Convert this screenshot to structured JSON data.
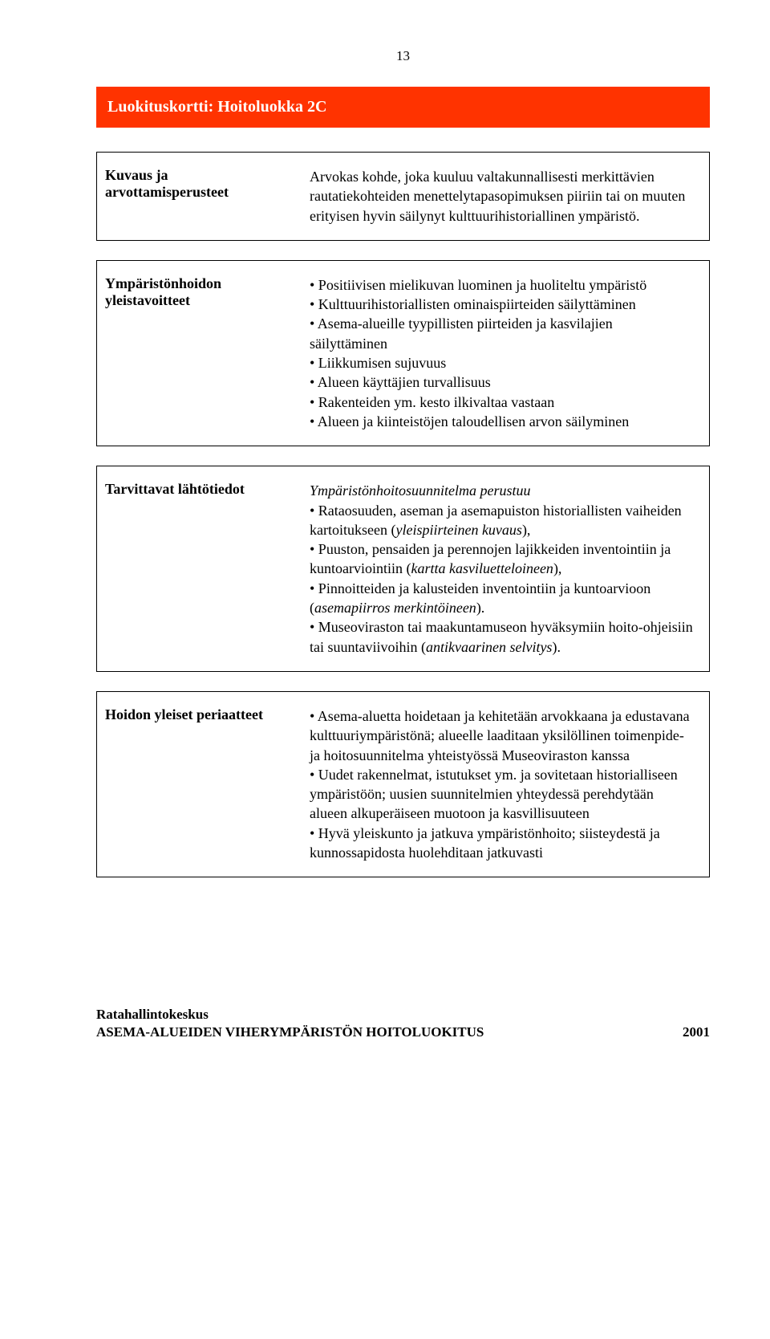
{
  "page_number": "13",
  "header_title": "Luokituskortti: Hoitoluokka   2C",
  "colors": {
    "header_bg": "#ff3300",
    "header_text": "#ffffff",
    "body_bg": "#ffffff",
    "body_text": "#000000",
    "border": "#000000"
  },
  "rows": [
    {
      "label": "Kuvaus ja arvottamisperusteet",
      "content_html": "Arvokas kohde, joka kuuluu valtakunnallisesti merkittävien rautatiekohteiden menettelytapasopimuksen piiriin tai on muuten erityisen hyvin säilynyt kulttuurihistoriallinen ympäristö."
    },
    {
      "label": "Ympäristönhoidon yleistavoitteet",
      "content_html": "• Positiivisen mielikuvan luominen ja huoliteltu ympäristö<br>• Kulttuurihistoriallisten ominaispiirteiden säilyttäminen<br>• Asema-alueille tyypillisten piirteiden ja kasvilajien säilyttäminen<br>• Liikkumisen sujuvuus<br>• Alueen käyttäjien turvallisuus<br>• Rakenteiden ym. kesto ilkivaltaa vastaan<br>• Alueen ja kiinteistöjen taloudellisen arvon säilyminen"
    },
    {
      "label": "Tarvittavat lähtötiedot",
      "content_html": "<span class=\"italic\">Ympäristönhoitosuunnitelma perustuu</span><br>• Rataosuuden, aseman ja asemapuiston historiallisten vaiheiden kartoitukseen (<span class=\"italic\">yleispiirteinen kuvaus</span>),<br>• Puuston, pensaiden ja perennojen lajikkeiden inventointiin ja kuntoarviointiin (<span class=\"italic\">kartta kasviluetteloineen</span>),<br>• Pinnoitteiden ja kalusteiden inventointiin ja kuntoarvioon (<span class=\"italic\">asemapiirros merkintöineen</span>).<br>• Museoviraston tai maakuntamuseon hyväksymiin hoito-ohjeisiin tai suuntaviivoihin (<span class=\"italic\">antikvaarinen selvitys</span>)."
    },
    {
      "label": "Hoidon yleiset periaatteet",
      "content_html": "• Asema-aluetta hoidetaan ja kehitetään arvokkaana ja edustavana kulttuuriympäristönä; alueelle laaditaan yksilöllinen toimenpide- ja hoitosuunnitelma yhteistyössä Museoviraston kanssa<br>• Uudet rakennelmat, istutukset ym. ja sovitetaan historialliseen ympäristöön; uusien suunnitelmien yhteydessä perehdytään alueen alkuperäiseen muotoon ja kasvillisuuteen<br>• Hyvä yleiskunto ja jatkuva ympäristönhoito; siisteydestä ja kunnossapidosta huolehditaan jatkuvasti"
    }
  ],
  "footer": {
    "top": "Ratahallintokeskus",
    "bottom_left": "ASEMA-ALUEIDEN VIHERYMPÄRISTÖN HOITOLUOKITUS",
    "bottom_right": "2001"
  }
}
